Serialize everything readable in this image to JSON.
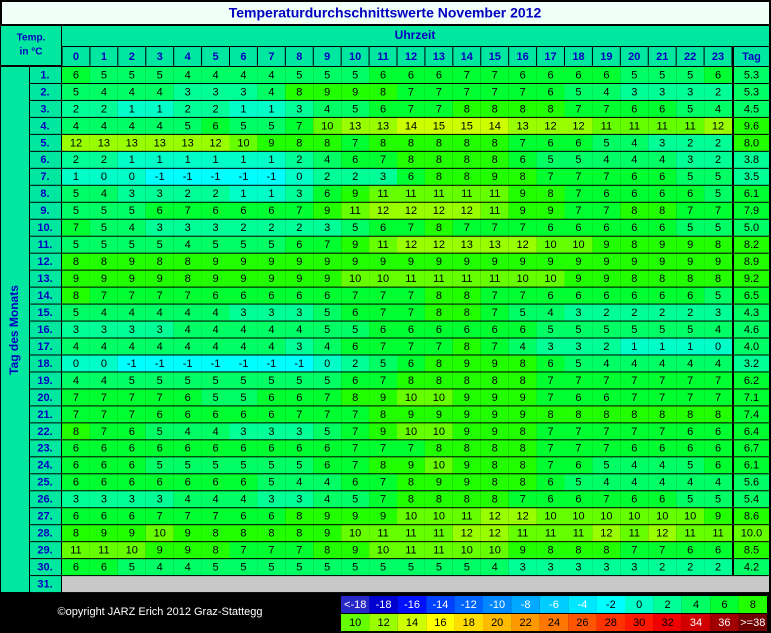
{
  "title": "Temperaturdurchschnittswerte November 2012",
  "corner_label": [
    "Temp.",
    "in °C"
  ],
  "time_label": "Uhrzeit",
  "day_label": "Tag des Monats",
  "avg_label": "Tag",
  "hours": [
    0,
    1,
    2,
    3,
    4,
    5,
    6,
    7,
    8,
    9,
    10,
    11,
    12,
    13,
    14,
    15,
    16,
    17,
    18,
    19,
    20,
    21,
    22,
    23
  ],
  "rows": [
    {
      "day": "1.",
      "values": [
        6,
        5,
        5,
        5,
        4,
        4,
        4,
        4,
        5,
        5,
        5,
        6,
        6,
        6,
        7,
        7,
        6,
        6,
        6,
        6,
        5,
        5,
        5,
        6
      ],
      "avg": 5.3
    },
    {
      "day": "2.",
      "values": [
        5,
        4,
        4,
        4,
        3,
        3,
        3,
        4,
        8,
        9,
        9,
        8,
        7,
        7,
        7,
        7,
        7,
        6,
        5,
        4,
        3,
        3,
        3,
        2
      ],
      "avg": 5.3
    },
    {
      "day": "3.",
      "values": [
        2,
        2,
        1,
        1,
        2,
        2,
        1,
        1,
        3,
        4,
        5,
        6,
        7,
        7,
        8,
        8,
        8,
        8,
        7,
        7,
        6,
        6,
        5,
        4
      ],
      "avg": 4.5
    },
    {
      "day": "4.",
      "values": [
        4,
        4,
        4,
        4,
        5,
        6,
        5,
        5,
        7,
        10,
        13,
        13,
        14,
        15,
        15,
        14,
        13,
        12,
        12,
        11,
        11,
        11,
        11,
        12
      ],
      "avg": 9.6
    },
    {
      "day": "5.",
      "values": [
        12,
        13,
        13,
        13,
        13,
        12,
        10,
        9,
        8,
        8,
        7,
        8,
        8,
        8,
        8,
        8,
        7,
        6,
        6,
        5,
        4,
        3,
        2,
        2
      ],
      "avg": {
        "value": 8,
        "label": "8.0"
      }
    },
    {
      "day": "6.",
      "values": [
        2,
        2,
        1,
        1,
        1,
        1,
        1,
        1,
        2,
        4,
        6,
        7,
        8,
        8,
        8,
        8,
        6,
        5,
        5,
        4,
        4,
        4,
        3,
        2
      ],
      "avg": 3.8
    },
    {
      "day": "7.",
      "values": [
        1,
        0,
        0,
        -1,
        -1,
        -1,
        -1,
        -1,
        0,
        2,
        2,
        3,
        6,
        8,
        8,
        9,
        8,
        7,
        7,
        7,
        6,
        6,
        5,
        5
      ],
      "avg": 3.5
    },
    {
      "day": "8.",
      "values": [
        5,
        4,
        3,
        3,
        2,
        2,
        1,
        1,
        3,
        6,
        9,
        11,
        11,
        11,
        11,
        11,
        9,
        8,
        7,
        6,
        6,
        6,
        6,
        5
      ],
      "avg": 6.1
    },
    {
      "day": "9.",
      "values": [
        5,
        5,
        5,
        6,
        7,
        6,
        6,
        6,
        7,
        9,
        11,
        12,
        12,
        12,
        12,
        11,
        9,
        9,
        7,
        7,
        8,
        8,
        7,
        7
      ],
      "avg": 7.9
    },
    {
      "day": "10.",
      "values": [
        7,
        5,
        4,
        3,
        3,
        3,
        2,
        2,
        2,
        3,
        5,
        6,
        7,
        8,
        7,
        7,
        7,
        6,
        6,
        6,
        6,
        6,
        5,
        5
      ],
      "avg": {
        "value": 5,
        "label": "5.0"
      }
    },
    {
      "day": "11.",
      "values": [
        5,
        5,
        5,
        5,
        4,
        5,
        5,
        5,
        6,
        7,
        9,
        11,
        12,
        12,
        13,
        13,
        12,
        10,
        10,
        9,
        8,
        9,
        9,
        8
      ],
      "avg": 8.2
    },
    {
      "day": "12.",
      "values": [
        8,
        8,
        9,
        8,
        8,
        9,
        9,
        9,
        9,
        9,
        9,
        9,
        9,
        9,
        9,
        9,
        9,
        9,
        9,
        9,
        9,
        9,
        9,
        9
      ],
      "avg": 8.9
    },
    {
      "day": "13.",
      "values": [
        9,
        9,
        9,
        9,
        8,
        9,
        9,
        9,
        9,
        9,
        10,
        10,
        11,
        11,
        11,
        11,
        10,
        10,
        9,
        9,
        8,
        8,
        8,
        8
      ],
      "avg": 9.2
    },
    {
      "day": "14.",
      "values": [
        8,
        7,
        7,
        7,
        7,
        6,
        6,
        6,
        6,
        6,
        7,
        7,
        7,
        8,
        8,
        7,
        7,
        6,
        6,
        6,
        6,
        6,
        6,
        5
      ],
      "avg": 6.5
    },
    {
      "day": "15.",
      "values": [
        5,
        4,
        4,
        4,
        4,
        4,
        3,
        3,
        3,
        5,
        6,
        7,
        7,
        8,
        8,
        7,
        5,
        4,
        3,
        2,
        2,
        2,
        2,
        3
      ],
      "avg": 4.3
    },
    {
      "day": "16.",
      "values": [
        3,
        3,
        3,
        3,
        4,
        4,
        4,
        4,
        4,
        5,
        5,
        6,
        6,
        6,
        6,
        6,
        6,
        5,
        5,
        5,
        5,
        5,
        5,
        4
      ],
      "avg": 4.6
    },
    {
      "day": "17.",
      "values": [
        4,
        4,
        4,
        4,
        4,
        4,
        4,
        4,
        3,
        4,
        6,
        7,
        7,
        7,
        8,
        7,
        4,
        3,
        3,
        2,
        1,
        1,
        1,
        0
      ],
      "avg": {
        "value": 4,
        "label": "4.0"
      }
    },
    {
      "day": "18.",
      "values": [
        0,
        0,
        -1,
        -1,
        -1,
        -1,
        -1,
        -1,
        -1,
        0,
        2,
        5,
        6,
        8,
        9,
        9,
        8,
        6,
        5,
        4,
        4,
        4,
        4,
        4
      ],
      "avg": 3.2
    },
    {
      "day": "19.",
      "values": [
        4,
        4,
        5,
        5,
        5,
        5,
        5,
        5,
        5,
        5,
        6,
        7,
        8,
        8,
        8,
        8,
        8,
        7,
        7,
        7,
        7,
        7,
        7,
        7
      ],
      "avg": 6.2
    },
    {
      "day": "20.",
      "values": [
        7,
        7,
        7,
        7,
        6,
        5,
        5,
        6,
        6,
        7,
        8,
        9,
        10,
        10,
        9,
        9,
        9,
        7,
        6,
        6,
        7,
        7,
        7,
        7
      ],
      "avg": 7.1
    },
    {
      "day": "21.",
      "values": [
        7,
        7,
        7,
        6,
        6,
        6,
        6,
        6,
        7,
        7,
        7,
        8,
        9,
        9,
        9,
        9,
        9,
        8,
        8,
        8,
        8,
        8,
        8,
        8
      ],
      "avg": 7.4
    },
    {
      "day": "22.",
      "values": [
        8,
        7,
        6,
        5,
        4,
        4,
        3,
        3,
        3,
        5,
        7,
        9,
        10,
        10,
        9,
        9,
        8,
        7,
        7,
        7,
        7,
        7,
        6,
        6
      ],
      "avg": 6.4
    },
    {
      "day": "23.",
      "values": [
        6,
        6,
        6,
        6,
        6,
        6,
        6,
        6,
        6,
        6,
        7,
        7,
        7,
        8,
        8,
        8,
        8,
        7,
        7,
        7,
        6,
        6,
        6,
        6
      ],
      "avg": 6.7
    },
    {
      "day": "24.",
      "values": [
        6,
        6,
        6,
        5,
        5,
        5,
        5,
        5,
        5,
        6,
        7,
        8,
        9,
        10,
        9,
        8,
        8,
        7,
        6,
        5,
        4,
        4,
        5,
        6
      ],
      "avg": 6.1
    },
    {
      "day": "25.",
      "values": [
        6,
        6,
        6,
        6,
        6,
        6,
        6,
        5,
        4,
        4,
        6,
        7,
        8,
        9,
        9,
        8,
        8,
        6,
        5,
        4,
        4,
        4,
        4,
        4
      ],
      "avg": 5.6
    },
    {
      "day": "26.",
      "values": [
        3,
        3,
        3,
        3,
        4,
        4,
        4,
        3,
        3,
        4,
        5,
        7,
        8,
        8,
        8,
        8,
        7,
        6,
        6,
        7,
        6,
        6,
        5,
        5
      ],
      "avg": 5.4
    },
    {
      "day": "27.",
      "values": [
        6,
        6,
        6,
        7,
        7,
        7,
        6,
        6,
        8,
        9,
        9,
        9,
        10,
        10,
        11,
        12,
        12,
        10,
        10,
        10,
        10,
        10,
        10,
        9
      ],
      "avg": 8.6
    },
    {
      "day": "28.",
      "values": [
        8,
        9,
        9,
        10,
        9,
        8,
        8,
        8,
        8,
        9,
        10,
        11,
        11,
        11,
        12,
        12,
        11,
        11,
        11,
        12,
        11,
        12,
        11,
        11
      ],
      "avg": {
        "value": 10,
        "label": "10.0"
      }
    },
    {
      "day": "29.",
      "values": [
        11,
        11,
        10,
        9,
        9,
        8,
        7,
        7,
        7,
        8,
        9,
        10,
        11,
        11,
        10,
        10,
        9,
        8,
        8,
        8,
        7,
        7,
        6,
        6
      ],
      "avg": 8.5
    },
    {
      "day": "30.",
      "values": [
        6,
        6,
        5,
        4,
        4,
        5,
        5,
        5,
        5,
        5,
        5,
        5,
        5,
        5,
        5,
        4,
        3,
        3,
        3,
        3,
        3,
        2,
        2,
        2
      ],
      "avg": 4.2
    },
    {
      "day": "31."
    }
  ],
  "copyright": "©opyright JARZ Erich 2012 Graz-Stattegg",
  "legend": [
    {
      "label": "<-18",
      "color": "#2828c8"
    },
    {
      "label": -18,
      "color": "#0000d0"
    },
    {
      "label": -16,
      "color": "#0010ff"
    },
    {
      "label": -14,
      "color": "#0040ff"
    },
    {
      "label": -12,
      "color": "#0064ff"
    },
    {
      "label": -10,
      "color": "#0088ff"
    },
    {
      "label": -8,
      "color": "#00a8ff"
    },
    {
      "label": -6,
      "color": "#00ccff"
    },
    {
      "label": -4,
      "color": "#00e8ff"
    },
    {
      "label": -2,
      "color": "#00ffff"
    },
    {
      "label": 0,
      "color": "#00ffc8"
    },
    {
      "label": 2,
      "color": "#00ff96"
    },
    {
      "label": 4,
      "color": "#00ff64"
    },
    {
      "label": 6,
      "color": "#00ff30"
    },
    {
      "label": 8,
      "color": "#22ff00"
    },
    {
      "label": 10,
      "color": "#66ff00"
    },
    {
      "label": 12,
      "color": "#99ff00"
    },
    {
      "label": 14,
      "color": "#ccff00"
    },
    {
      "label": 16,
      "color": "#ffff00"
    },
    {
      "label": 18,
      "color": "#ffdd00"
    },
    {
      "label": 20,
      "color": "#ffbb00"
    },
    {
      "label": 22,
      "color": "#ff9900"
    },
    {
      "label": 24,
      "color": "#ff7700"
    },
    {
      "label": 26,
      "color": "#ff5500"
    },
    {
      "label": 28,
      "color": "#ff3300"
    },
    {
      "label": 30,
      "color": "#ff1800"
    },
    {
      "label": 32,
      "color": "#f00000"
    },
    {
      "label": 34,
      "color": "#d00000"
    },
    {
      "label": 36,
      "color": "#a00000"
    },
    {
      "label": ">=38",
      "color": "#700000"
    }
  ]
}
